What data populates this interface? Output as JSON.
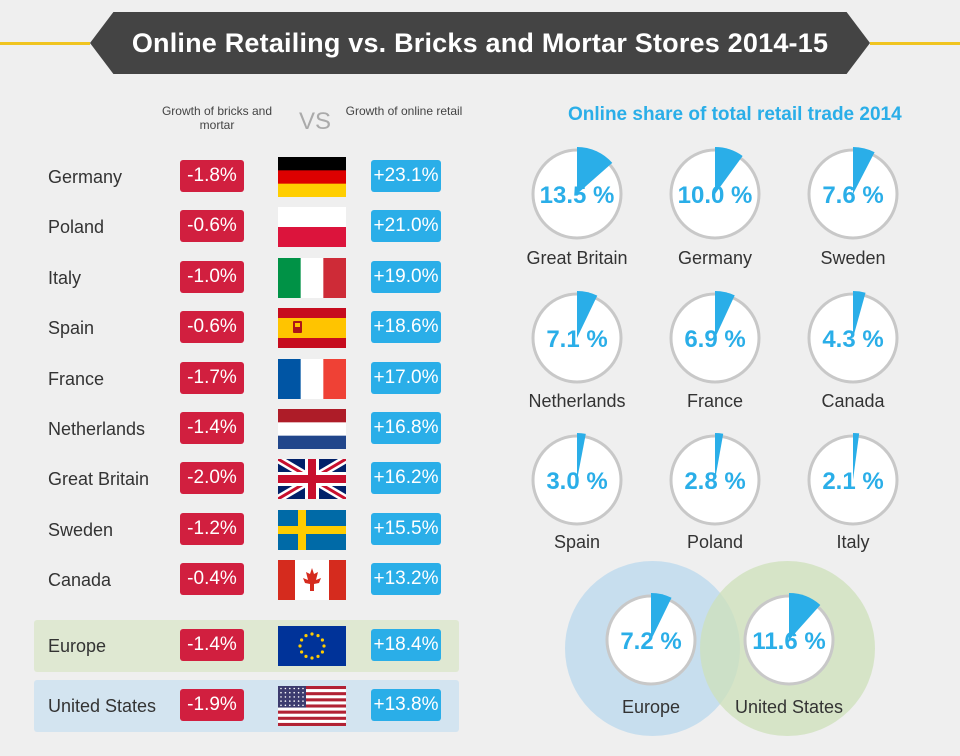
{
  "title": "Online Retailing vs. Bricks and Mortar Stores 2014-15",
  "table": {
    "header_bricks": "Growth of bricks and mortar",
    "header_vs": "VS",
    "header_online": "Growth of online retail",
    "rows": [
      {
        "country": "Germany",
        "bricks": "-1.8%",
        "online": "+23.1%",
        "flag": "germany-flag"
      },
      {
        "country": "Poland",
        "bricks": "-0.6%",
        "online": "+21.0%",
        "flag": "poland-flag"
      },
      {
        "country": "Italy",
        "bricks": "-1.0%",
        "online": "+19.0%",
        "flag": "italy-flag"
      },
      {
        "country": "Spain",
        "bricks": "-0.6%",
        "online": "+18.6%",
        "flag": "spain-flag"
      },
      {
        "country": "France",
        "bricks": "-1.7%",
        "online": "+17.0%",
        "flag": "france-flag"
      },
      {
        "country": "Netherlands",
        "bricks": "-1.4%",
        "online": "+16.8%",
        "flag": "netherlands-flag"
      },
      {
        "country": "Great Britain",
        "bricks": "-2.0%",
        "online": "+16.2%",
        "flag": "uk-flag"
      },
      {
        "country": "Sweden",
        "bricks": "-1.2%",
        "online": "+15.5%",
        "flag": "sweden-flag"
      },
      {
        "country": "Canada",
        "bricks": "-0.4%",
        "online": "+13.2%",
        "flag": "canada-flag"
      }
    ],
    "europe": {
      "country": "Europe",
      "bricks": "-1.4%",
      "online": "+18.4%",
      "flag": "eu-flag"
    },
    "us": {
      "country": "United States",
      "bricks": "-1.9%",
      "online": "+13.8%",
      "flag": "us-flag"
    }
  },
  "colors": {
    "negative": "#d11f3f",
    "positive": "#2aaee8",
    "banner": "#444444",
    "accent_line": "#f0c420",
    "europe_highlight": "#dfe8d2",
    "us_highlight": "#d3e4f0"
  },
  "chart_data": {
    "type": "pie",
    "title": "Online share of total retail trade 2014",
    "series": [
      {
        "name": "Great Britain",
        "value": 13.5,
        "label": "13.5 %"
      },
      {
        "name": "Germany",
        "value": 10.0,
        "label": "10.0 %"
      },
      {
        "name": "Sweden",
        "value": 7.6,
        "label": "7.6 %"
      },
      {
        "name": "Netherlands",
        "value": 7.1,
        "label": "7.1 %"
      },
      {
        "name": "France",
        "value": 6.9,
        "label": "6.9 %"
      },
      {
        "name": "Canada",
        "value": 4.3,
        "label": "4.3 %"
      },
      {
        "name": "Spain",
        "value": 3.0,
        "label": "3.0 %"
      },
      {
        "name": "Poland",
        "value": 2.8,
        "label": "2.8 %"
      },
      {
        "name": "Italy",
        "value": 2.1,
        "label": "2.1 %"
      }
    ],
    "comparison": [
      {
        "name": "Europe",
        "value": 7.2,
        "label": "7.2 %"
      },
      {
        "name": "United States",
        "value": 11.6,
        "label": "11.6 %"
      }
    ]
  }
}
